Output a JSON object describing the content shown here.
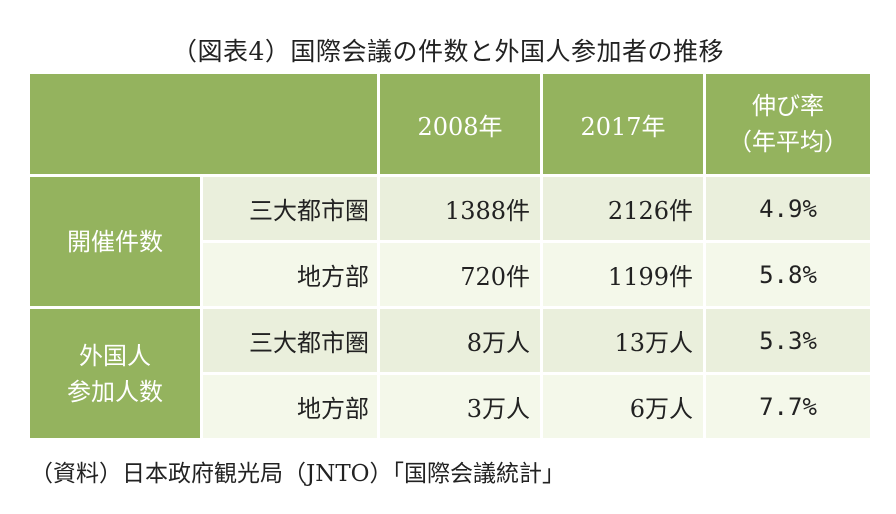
{
  "title": "（図表4）国際会議の件数と外国人参加者の推移",
  "header": {
    "col1": "2008年",
    "col2": "2017年",
    "col3_line1": "伸び率",
    "col3_line2": "（年平均）"
  },
  "groups": [
    {
      "label": "開催件数",
      "rows": [
        {
          "region": "三大都市圏",
          "v2008": "1388件",
          "v2017": "2126件",
          "rate": "4.9%"
        },
        {
          "region": "地方部",
          "v2008": "720件",
          "v2017": "1199件",
          "rate": "5.8%"
        }
      ]
    },
    {
      "label_line1": "外国人",
      "label_line2": "参加人数",
      "rows": [
        {
          "region": "三大都市圏",
          "v2008": "8万人",
          "v2017": "13万人",
          "rate": "5.3%"
        },
        {
          "region": "地方部",
          "v2008": "3万人",
          "v2017": "6万人",
          "rate": "7.7%"
        }
      ]
    }
  ],
  "source": "（資料）日本政府観光局（JNTO）「国際会議統計」",
  "colors": {
    "header_green": "#94b35e",
    "row_light": "#eaefdc",
    "row_lighter": "#f4f8ea"
  }
}
